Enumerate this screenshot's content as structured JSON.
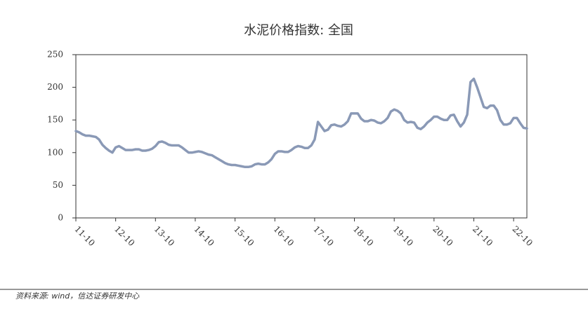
{
  "chart_data": {
    "type": "line",
    "title": "水泥价格指数: 全国",
    "source": "资料来源: wind，信达证券研发中心",
    "categories": [
      "11-10",
      null,
      null,
      null,
      null,
      null,
      null,
      null,
      null,
      null,
      null,
      null,
      "12-10",
      null,
      null,
      null,
      null,
      null,
      null,
      null,
      null,
      null,
      null,
      null,
      "13-10",
      null,
      null,
      null,
      null,
      null,
      null,
      null,
      null,
      null,
      null,
      null,
      "14-10",
      null,
      null,
      null,
      null,
      null,
      null,
      null,
      null,
      null,
      null,
      null,
      "15-10",
      null,
      null,
      null,
      null,
      null,
      null,
      null,
      null,
      null,
      null,
      null,
      "16-10",
      null,
      null,
      null,
      null,
      null,
      null,
      null,
      null,
      null,
      null,
      null,
      "17-10",
      null,
      null,
      null,
      null,
      null,
      null,
      null,
      null,
      null,
      null,
      null,
      "18-10",
      null,
      null,
      null,
      null,
      null,
      null,
      null,
      null,
      null,
      null,
      null,
      "19-10",
      null,
      null,
      null,
      null,
      null,
      null,
      null,
      null,
      null,
      null,
      null,
      "20-10",
      null,
      null,
      null,
      null,
      null,
      null,
      null,
      null,
      null,
      null,
      null,
      "21-10",
      null,
      null,
      null,
      null,
      null,
      null,
      null,
      null,
      null,
      null,
      null,
      "22-10",
      null,
      null,
      null,
      null
    ],
    "series": [
      {
        "color": "#8a99b6",
        "values": [
          133,
          131,
          128,
          126,
          126,
          125,
          124,
          120,
          112,
          107,
          103,
          100,
          108,
          110,
          107,
          104,
          104,
          104,
          105,
          105,
          103,
          103,
          104,
          106,
          110,
          116,
          117,
          115,
          112,
          111,
          111,
          111,
          108,
          104,
          100,
          100,
          101,
          102,
          101,
          99,
          97,
          96,
          93,
          90,
          87,
          84,
          82,
          81,
          81,
          80,
          79,
          78,
          78,
          79,
          82,
          83,
          82,
          82,
          85,
          90,
          98,
          102,
          102,
          101,
          101,
          104,
          108,
          110,
          109,
          107,
          107,
          111,
          120,
          147,
          140,
          133,
          135,
          142,
          143,
          141,
          140,
          143,
          148,
          160,
          160,
          160,
          152,
          148,
          148,
          150,
          149,
          146,
          145,
          148,
          153,
          163,
          166,
          164,
          160,
          150,
          146,
          147,
          146,
          138,
          136,
          140,
          146,
          150,
          155,
          155,
          152,
          150,
          150,
          157,
          158,
          148,
          140,
          146,
          158,
          208,
          213,
          200,
          185,
          170,
          168,
          172,
          172,
          165,
          150,
          143,
          143,
          145,
          153,
          153,
          145,
          138,
          137
        ]
      }
    ],
    "ylim": [
      0,
      250
    ],
    "yticks": [
      0,
      50,
      100,
      150,
      200,
      250
    ]
  }
}
